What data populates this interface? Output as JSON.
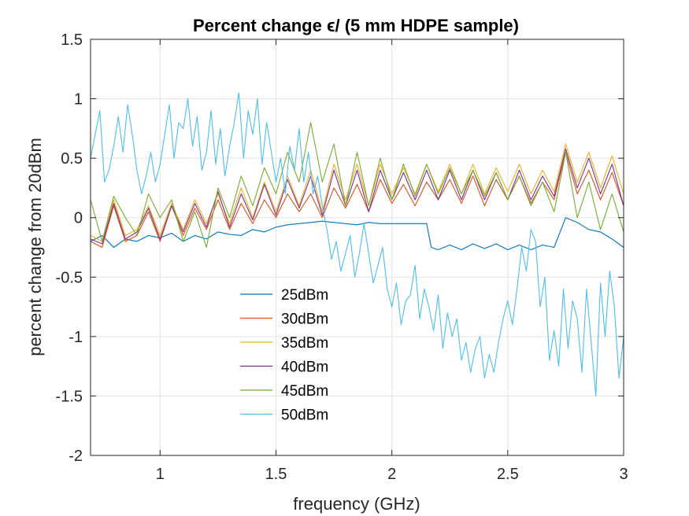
{
  "chart_data": {
    "type": "line",
    "title": "Percent change ϵ/ (5 mm HDPE sample)",
    "xlabel": "frequency (GHz)",
    "ylabel": "percent change from 20dBm",
    "xlim": [
      0.7,
      3.0
    ],
    "ylim": [
      -2,
      1.5
    ],
    "xticks": [
      "1",
      "1.5",
      "2",
      "2.5",
      "3"
    ],
    "xtick_values": [
      1,
      1.5,
      2,
      2.5,
      3
    ],
    "yticks": [
      "1.5",
      "1",
      "0.5",
      "0",
      "-0.5",
      "-1",
      "-1.5",
      "-2"
    ],
    "ytick_values": [
      1.5,
      1,
      0.5,
      0,
      -0.5,
      -1,
      -1.5,
      -2
    ],
    "grid": true,
    "legend_position": "lower-center",
    "series": [
      {
        "name": "25dBm",
        "color": "#0072BD",
        "x": [
          0.7,
          0.75,
          0.8,
          0.85,
          0.9,
          0.95,
          1.0,
          1.05,
          1.1,
          1.15,
          1.2,
          1.25,
          1.3,
          1.35,
          1.4,
          1.45,
          1.5,
          1.55,
          1.6,
          1.65,
          1.7,
          1.75,
          1.8,
          1.85,
          1.9,
          1.95,
          2.0,
          2.05,
          2.1,
          2.15,
          2.17,
          2.2,
          2.25,
          2.3,
          2.35,
          2.4,
          2.45,
          2.5,
          2.55,
          2.6,
          2.65,
          2.7,
          2.75,
          2.8,
          2.85,
          2.9,
          2.95,
          3.0
        ],
        "y": [
          -0.2,
          -0.15,
          -0.25,
          -0.18,
          -0.2,
          -0.15,
          -0.17,
          -0.13,
          -0.2,
          -0.15,
          -0.18,
          -0.12,
          -0.14,
          -0.15,
          -0.1,
          -0.12,
          -0.08,
          -0.06,
          -0.05,
          -0.04,
          -0.03,
          -0.04,
          -0.05,
          -0.06,
          -0.04,
          -0.05,
          -0.05,
          -0.05,
          -0.05,
          -0.05,
          -0.25,
          -0.27,
          -0.23,
          -0.27,
          -0.22,
          -0.26,
          -0.22,
          -0.27,
          -0.23,
          -0.27,
          -0.23,
          -0.25,
          0.0,
          -0.04,
          -0.1,
          -0.12,
          -0.18,
          -0.25
        ]
      },
      {
        "name": "30dBm",
        "color": "#D95319",
        "x": [
          0.7,
          0.75,
          0.8,
          0.85,
          0.9,
          0.95,
          1.0,
          1.05,
          1.1,
          1.15,
          1.2,
          1.25,
          1.3,
          1.35,
          1.4,
          1.45,
          1.5,
          1.55,
          1.6,
          1.65,
          1.7,
          1.75,
          1.8,
          1.85,
          1.9,
          1.95,
          2.0,
          2.05,
          2.1,
          2.15,
          2.2,
          2.25,
          2.3,
          2.35,
          2.4,
          2.45,
          2.5,
          2.55,
          2.6,
          2.65,
          2.7,
          2.75,
          2.8,
          2.85,
          2.9,
          2.95,
          3.0
        ],
        "y": [
          -0.2,
          -0.25,
          0.1,
          -0.2,
          -0.15,
          0.05,
          -0.2,
          0.1,
          -0.15,
          0.08,
          -0.1,
          0.15,
          -0.1,
          0.12,
          -0.05,
          0.15,
          0.0,
          0.2,
          0.05,
          0.2,
          0.0,
          0.25,
          0.08,
          0.28,
          0.05,
          0.32,
          0.12,
          0.28,
          0.1,
          0.3,
          0.15,
          0.32,
          0.12,
          0.35,
          0.1,
          0.32,
          0.15,
          0.35,
          0.12,
          0.3,
          0.15,
          0.55,
          0.2,
          0.4,
          0.15,
          0.38,
          0.1
        ]
      },
      {
        "name": "35dBm",
        "color": "#EDB120",
        "x": [
          0.7,
          0.75,
          0.8,
          0.85,
          0.9,
          0.95,
          1.0,
          1.05,
          1.1,
          1.15,
          1.2,
          1.25,
          1.3,
          1.35,
          1.4,
          1.45,
          1.5,
          1.55,
          1.6,
          1.65,
          1.7,
          1.75,
          1.8,
          1.85,
          1.9,
          1.95,
          2.0,
          2.05,
          2.1,
          2.15,
          2.2,
          2.25,
          2.3,
          2.35,
          2.4,
          2.45,
          2.5,
          2.55,
          2.6,
          2.65,
          2.7,
          2.75,
          2.8,
          2.85,
          2.9,
          2.95,
          3.0
        ],
        "y": [
          -0.15,
          -0.2,
          0.15,
          -0.15,
          -0.1,
          0.1,
          -0.15,
          0.12,
          -0.1,
          0.15,
          -0.05,
          0.2,
          -0.05,
          0.25,
          0.0,
          0.3,
          0.05,
          0.35,
          0.1,
          0.4,
          0.05,
          0.45,
          0.15,
          0.45,
          0.1,
          0.45,
          0.2,
          0.42,
          0.2,
          0.45,
          0.22,
          0.45,
          0.2,
          0.45,
          0.2,
          0.42,
          0.22,
          0.45,
          0.2,
          0.4,
          0.22,
          0.62,
          0.3,
          0.55,
          0.25,
          0.52,
          0.2
        ]
      },
      {
        "name": "40dBm",
        "color": "#7E2F8E",
        "x": [
          0.7,
          0.75,
          0.8,
          0.85,
          0.9,
          0.95,
          1.0,
          1.05,
          1.1,
          1.15,
          1.2,
          1.25,
          1.3,
          1.35,
          1.4,
          1.45,
          1.5,
          1.55,
          1.6,
          1.65,
          1.7,
          1.75,
          1.8,
          1.85,
          1.9,
          1.95,
          2.0,
          2.05,
          2.1,
          2.15,
          2.2,
          2.25,
          2.3,
          2.35,
          2.4,
          2.45,
          2.5,
          2.55,
          2.6,
          2.65,
          2.7,
          2.75,
          2.8,
          2.85,
          2.9,
          2.95,
          3.0
        ],
        "y": [
          -0.18,
          -0.22,
          0.12,
          -0.18,
          -0.12,
          0.08,
          -0.18,
          0.1,
          -0.12,
          0.12,
          -0.08,
          0.22,
          -0.08,
          0.2,
          -0.02,
          0.28,
          0.02,
          0.32,
          0.08,
          0.35,
          0.02,
          0.4,
          0.1,
          0.4,
          0.05,
          0.4,
          0.15,
          0.38,
          0.15,
          0.4,
          0.15,
          0.4,
          0.15,
          0.4,
          0.15,
          0.38,
          0.15,
          0.4,
          0.15,
          0.35,
          0.18,
          0.58,
          0.25,
          0.5,
          0.2,
          0.45,
          0.1
        ]
      },
      {
        "name": "45dBm",
        "color": "#77AC30",
        "x": [
          0.7,
          0.75,
          0.8,
          0.85,
          0.9,
          0.95,
          1.0,
          1.05,
          1.1,
          1.15,
          1.2,
          1.25,
          1.3,
          1.35,
          1.4,
          1.45,
          1.5,
          1.55,
          1.6,
          1.65,
          1.7,
          1.75,
          1.8,
          1.85,
          1.9,
          1.95,
          2.0,
          2.05,
          2.1,
          2.15,
          2.2,
          2.25,
          2.3,
          2.35,
          2.4,
          2.45,
          2.5,
          2.55,
          2.6,
          2.65,
          2.7,
          2.75,
          2.8,
          2.85,
          2.9,
          2.95,
          3.0
        ],
        "y": [
          0.15,
          -0.2,
          0.18,
          0.0,
          -0.15,
          0.2,
          0.0,
          0.15,
          -0.2,
          0.05,
          -0.25,
          0.25,
          0.0,
          0.35,
          0.1,
          0.42,
          0.2,
          0.55,
          0.3,
          0.8,
          0.3,
          0.62,
          0.1,
          0.55,
          0.1,
          0.5,
          0.15,
          0.45,
          0.18,
          0.45,
          0.2,
          0.42,
          0.2,
          0.4,
          0.18,
          0.38,
          0.15,
          0.35,
          0.1,
          0.3,
          0.05,
          0.55,
          0.0,
          0.3,
          -0.1,
          0.2,
          -0.12
        ]
      },
      {
        "name": "50dBm",
        "color": "#4DBEEE",
        "x": [
          0.7,
          0.72,
          0.74,
          0.76,
          0.78,
          0.8,
          0.82,
          0.84,
          0.86,
          0.88,
          0.9,
          0.92,
          0.94,
          0.96,
          0.98,
          1.0,
          1.02,
          1.04,
          1.06,
          1.08,
          1.1,
          1.12,
          1.14,
          1.16,
          1.18,
          1.2,
          1.22,
          1.24,
          1.26,
          1.28,
          1.3,
          1.32,
          1.34,
          1.36,
          1.38,
          1.4,
          1.42,
          1.44,
          1.46,
          1.48,
          1.5,
          1.52,
          1.54,
          1.56,
          1.58,
          1.6,
          1.62,
          1.64,
          1.66,
          1.68,
          1.7,
          1.72,
          1.74,
          1.76,
          1.78,
          1.8,
          1.82,
          1.84,
          1.86,
          1.88,
          1.9,
          1.92,
          1.94,
          1.96,
          1.98,
          2.0,
          2.02,
          2.04,
          2.06,
          2.08,
          2.1,
          2.12,
          2.14,
          2.16,
          2.18,
          2.2,
          2.22,
          2.24,
          2.26,
          2.28,
          2.3,
          2.32,
          2.34,
          2.36,
          2.38,
          2.4,
          2.42,
          2.44,
          2.46,
          2.48,
          2.5,
          2.52,
          2.54,
          2.56,
          2.58,
          2.6,
          2.62,
          2.64,
          2.66,
          2.68,
          2.7,
          2.72,
          2.74,
          2.76,
          2.78,
          2.8,
          2.82,
          2.84,
          2.86,
          2.88,
          2.9,
          2.92,
          2.94,
          2.96,
          2.98,
          3.0
        ],
        "y": [
          0.5,
          0.7,
          0.9,
          0.3,
          0.4,
          0.6,
          0.85,
          0.55,
          0.95,
          0.7,
          0.4,
          0.2,
          0.35,
          0.55,
          0.3,
          0.45,
          0.7,
          0.95,
          0.5,
          0.8,
          0.75,
          1.0,
          0.6,
          0.85,
          0.4,
          0.55,
          0.9,
          0.45,
          0.75,
          0.35,
          0.6,
          0.8,
          1.05,
          0.5,
          0.9,
          0.7,
          1.0,
          0.45,
          0.8,
          0.55,
          0.3,
          0.5,
          0.2,
          0.6,
          0.4,
          0.75,
          0.3,
          0.55,
          0.2,
          0.35,
          0.1,
          -0.1,
          -0.35,
          -0.2,
          -0.45,
          -0.3,
          -0.15,
          -0.5,
          -0.3,
          -0.05,
          -0.3,
          -0.55,
          -0.4,
          -0.25,
          -0.6,
          -0.75,
          -0.55,
          -0.9,
          -0.7,
          -0.65,
          -0.4,
          -0.85,
          -0.6,
          -0.75,
          -0.95,
          -0.65,
          -1.1,
          -0.8,
          -1.0,
          -0.85,
          -1.2,
          -1.05,
          -1.3,
          -1.1,
          -1.0,
          -1.35,
          -1.15,
          -1.3,
          -1.05,
          -0.85,
          -0.7,
          -0.9,
          -0.6,
          -0.25,
          -0.45,
          -0.1,
          -0.2,
          -0.75,
          -0.5,
          -1.2,
          -0.95,
          -1.25,
          -0.6,
          -1.1,
          -0.7,
          -0.85,
          -1.3,
          -0.6,
          -1.05,
          -1.5,
          -0.55,
          -1.0,
          -0.45,
          -0.75,
          -1.35,
          -1.0
        ]
      }
    ]
  }
}
